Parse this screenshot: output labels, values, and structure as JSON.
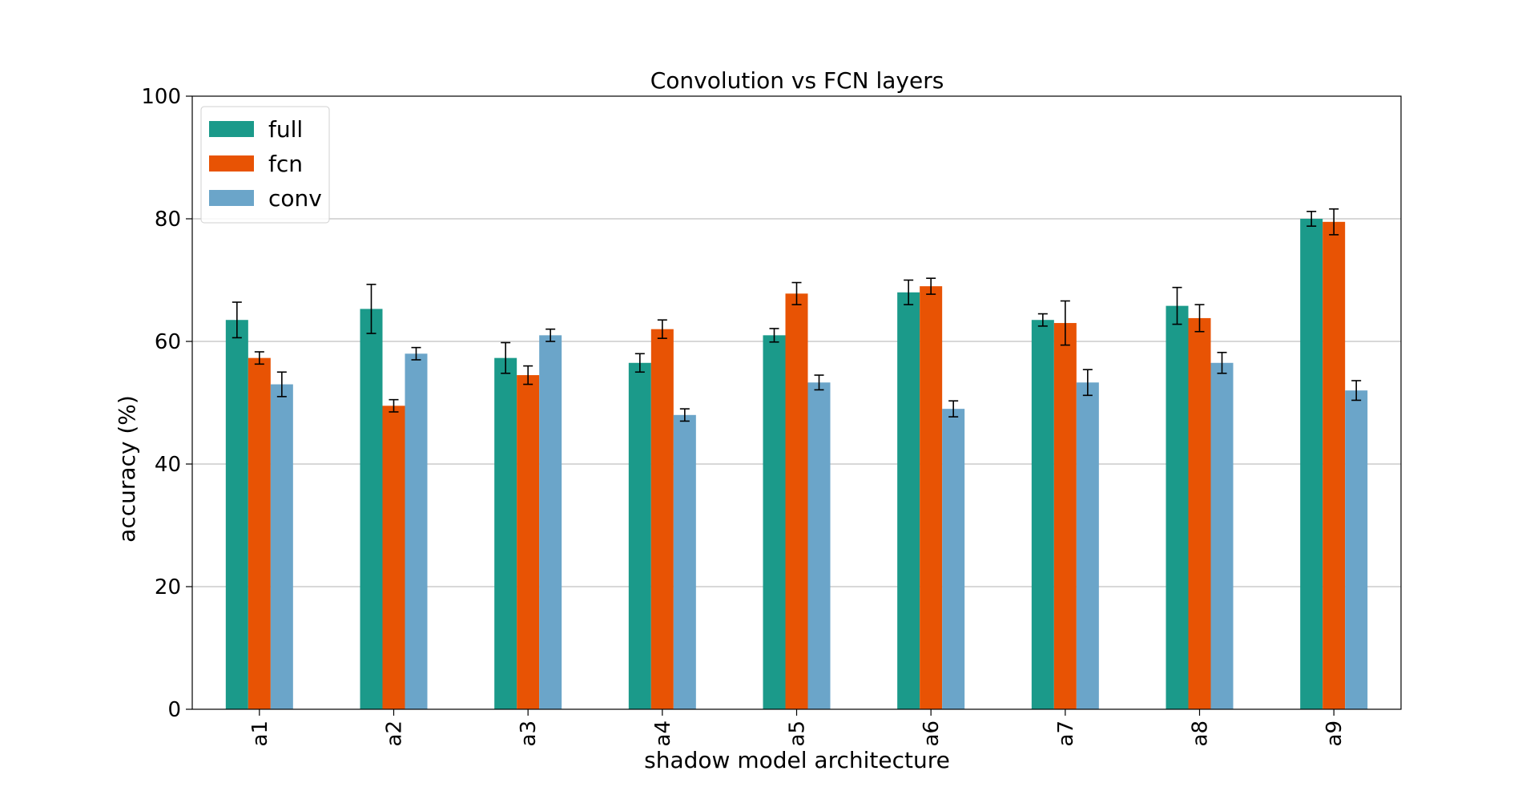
{
  "chart_data": {
    "type": "bar",
    "title": "Convolution vs FCN layers",
    "xlabel": "shadow model architecture",
    "ylabel": "accuracy (%)",
    "categories": [
      "a1",
      "a2",
      "a3",
      "a4",
      "a5",
      "a6",
      "a7",
      "a8",
      "a9"
    ],
    "ylim": [
      0,
      100
    ],
    "yticks": [
      0,
      20,
      40,
      60,
      80,
      100
    ],
    "grid": "y",
    "legend_position": "top-left",
    "series": [
      {
        "name": "full",
        "color": "#1b9a8a",
        "values": [
          63.5,
          65.3,
          57.3,
          56.5,
          61.0,
          68.0,
          63.5,
          65.8,
          80.0
        ],
        "errors": [
          2.9,
          4.0,
          2.5,
          1.5,
          1.1,
          2.0,
          1.0,
          3.0,
          1.2
        ]
      },
      {
        "name": "fcn",
        "color": "#e85304",
        "values": [
          57.3,
          49.5,
          54.5,
          62.0,
          67.8,
          69.0,
          63.0,
          63.8,
          79.5
        ],
        "errors": [
          1.0,
          1.0,
          1.5,
          1.5,
          1.8,
          1.3,
          3.6,
          2.2,
          2.1
        ]
      },
      {
        "name": "conv",
        "color": "#6ba5c9",
        "values": [
          53.0,
          58.0,
          61.0,
          48.0,
          53.3,
          49.0,
          53.3,
          56.5,
          52.0
        ],
        "errors": [
          2.0,
          1.0,
          1.0,
          1.0,
          1.2,
          1.3,
          2.1,
          1.7,
          1.6
        ]
      }
    ]
  }
}
